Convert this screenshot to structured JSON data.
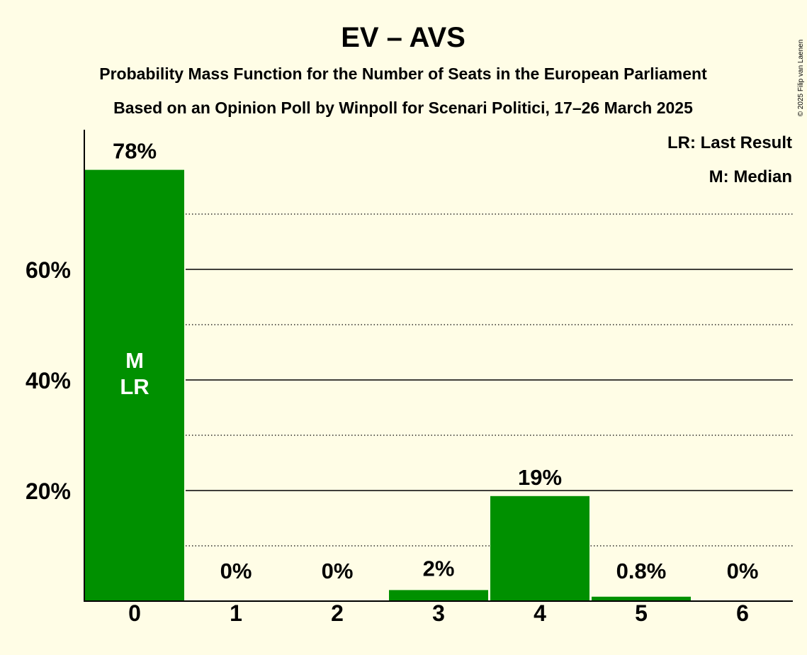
{
  "chart_data": {
    "type": "bar",
    "title": "EV – AVS",
    "subtitle_lines": [
      "Probability Mass Function for the Number of Seats in the European Parliament",
      "Based on an Opinion Poll by Winpoll for Scenari Politici, 17–26 March 2025"
    ],
    "copyright": "© 2025 Filip van Laenen",
    "legend": [
      "LR: Last Result",
      "M: Median"
    ],
    "categories": [
      "0",
      "1",
      "2",
      "3",
      "4",
      "5",
      "6"
    ],
    "values": [
      78,
      0,
      0,
      2,
      19,
      0.8,
      0
    ],
    "value_labels": [
      "78%",
      "0%",
      "0%",
      "2%",
      "19%",
      "0.8%",
      "0%"
    ],
    "bar_annotations": [
      {
        "category": "0",
        "lines": [
          "M",
          "LR"
        ]
      }
    ],
    "yticks": [
      20,
      40,
      60
    ],
    "ytick_labels": [
      "20%",
      "40%",
      "60%"
    ],
    "minor_gridlines": [
      10,
      30,
      50,
      70
    ],
    "ylim": [
      0,
      85
    ],
    "bar_color": "#009000",
    "xlabel": "",
    "ylabel": ""
  }
}
